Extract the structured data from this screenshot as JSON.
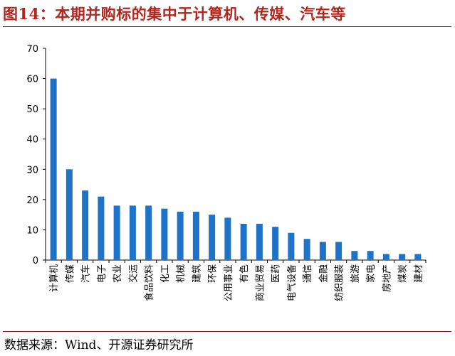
{
  "figure": {
    "title": "图14：本期并购标的集中于计算机、传媒、汽车等",
    "source": "数据来源：Wind、开源证券研究所"
  },
  "chart_data": {
    "type": "bar",
    "title": "",
    "xlabel": "",
    "ylabel": "",
    "ylim": [
      0,
      70
    ],
    "yticks": [
      0,
      10,
      20,
      30,
      40,
      50,
      60,
      70
    ],
    "grid": false,
    "legend": "none",
    "bar_color": "#1e73c8",
    "categories": [
      "计算机",
      "传媒",
      "汽车",
      "电子",
      "农业",
      "交运",
      "食品饮料",
      "化工",
      "机械",
      "建筑",
      "环保",
      "公用事业",
      "有色",
      "商业贸易",
      "医药",
      "电气设备",
      "通信",
      "金融",
      "纺织服装",
      "旅游",
      "家电",
      "房地产",
      "煤炭",
      "建材"
    ],
    "values": [
      60,
      30,
      23,
      21,
      18,
      18,
      18,
      17,
      16,
      16,
      15,
      14,
      12,
      12,
      11,
      9,
      7,
      6,
      6,
      3,
      3,
      2,
      2,
      2
    ]
  }
}
